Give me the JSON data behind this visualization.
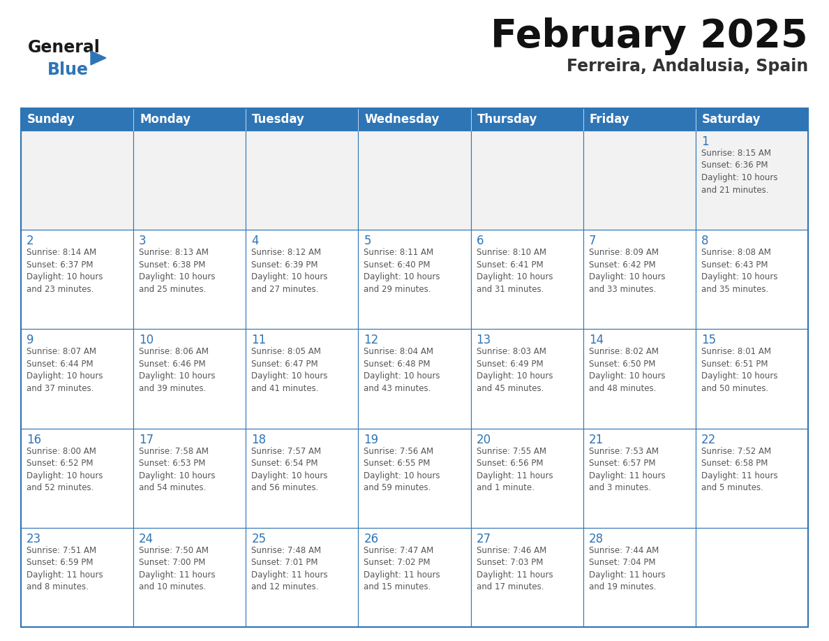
{
  "title": "February 2025",
  "subtitle": "Ferreira, Andalusia, Spain",
  "header_color": "#2E75B6",
  "header_text_color": "#FFFFFF",
  "cell_bg_color": "#FFFFFF",
  "cell_alt_bg_color": "#F2F2F2",
  "border_color": "#2E75B6",
  "day_number_color": "#2E75B6",
  "cell_text_color": "#555555",
  "title_color": "#111111",
  "subtitle_color": "#333333",
  "days_of_week": [
    "Sunday",
    "Monday",
    "Tuesday",
    "Wednesday",
    "Thursday",
    "Friday",
    "Saturday"
  ],
  "weeks": [
    [
      {
        "day": "",
        "info": ""
      },
      {
        "day": "",
        "info": ""
      },
      {
        "day": "",
        "info": ""
      },
      {
        "day": "",
        "info": ""
      },
      {
        "day": "",
        "info": ""
      },
      {
        "day": "",
        "info": ""
      },
      {
        "day": "1",
        "info": "Sunrise: 8:15 AM\nSunset: 6:36 PM\nDaylight: 10 hours\nand 21 minutes."
      }
    ],
    [
      {
        "day": "2",
        "info": "Sunrise: 8:14 AM\nSunset: 6:37 PM\nDaylight: 10 hours\nand 23 minutes."
      },
      {
        "day": "3",
        "info": "Sunrise: 8:13 AM\nSunset: 6:38 PM\nDaylight: 10 hours\nand 25 minutes."
      },
      {
        "day": "4",
        "info": "Sunrise: 8:12 AM\nSunset: 6:39 PM\nDaylight: 10 hours\nand 27 minutes."
      },
      {
        "day": "5",
        "info": "Sunrise: 8:11 AM\nSunset: 6:40 PM\nDaylight: 10 hours\nand 29 minutes."
      },
      {
        "day": "6",
        "info": "Sunrise: 8:10 AM\nSunset: 6:41 PM\nDaylight: 10 hours\nand 31 minutes."
      },
      {
        "day": "7",
        "info": "Sunrise: 8:09 AM\nSunset: 6:42 PM\nDaylight: 10 hours\nand 33 minutes."
      },
      {
        "day": "8",
        "info": "Sunrise: 8:08 AM\nSunset: 6:43 PM\nDaylight: 10 hours\nand 35 minutes."
      }
    ],
    [
      {
        "day": "9",
        "info": "Sunrise: 8:07 AM\nSunset: 6:44 PM\nDaylight: 10 hours\nand 37 minutes."
      },
      {
        "day": "10",
        "info": "Sunrise: 8:06 AM\nSunset: 6:46 PM\nDaylight: 10 hours\nand 39 minutes."
      },
      {
        "day": "11",
        "info": "Sunrise: 8:05 AM\nSunset: 6:47 PM\nDaylight: 10 hours\nand 41 minutes."
      },
      {
        "day": "12",
        "info": "Sunrise: 8:04 AM\nSunset: 6:48 PM\nDaylight: 10 hours\nand 43 minutes."
      },
      {
        "day": "13",
        "info": "Sunrise: 8:03 AM\nSunset: 6:49 PM\nDaylight: 10 hours\nand 45 minutes."
      },
      {
        "day": "14",
        "info": "Sunrise: 8:02 AM\nSunset: 6:50 PM\nDaylight: 10 hours\nand 48 minutes."
      },
      {
        "day": "15",
        "info": "Sunrise: 8:01 AM\nSunset: 6:51 PM\nDaylight: 10 hours\nand 50 minutes."
      }
    ],
    [
      {
        "day": "16",
        "info": "Sunrise: 8:00 AM\nSunset: 6:52 PM\nDaylight: 10 hours\nand 52 minutes."
      },
      {
        "day": "17",
        "info": "Sunrise: 7:58 AM\nSunset: 6:53 PM\nDaylight: 10 hours\nand 54 minutes."
      },
      {
        "day": "18",
        "info": "Sunrise: 7:57 AM\nSunset: 6:54 PM\nDaylight: 10 hours\nand 56 minutes."
      },
      {
        "day": "19",
        "info": "Sunrise: 7:56 AM\nSunset: 6:55 PM\nDaylight: 10 hours\nand 59 minutes."
      },
      {
        "day": "20",
        "info": "Sunrise: 7:55 AM\nSunset: 6:56 PM\nDaylight: 11 hours\nand 1 minute."
      },
      {
        "day": "21",
        "info": "Sunrise: 7:53 AM\nSunset: 6:57 PM\nDaylight: 11 hours\nand 3 minutes."
      },
      {
        "day": "22",
        "info": "Sunrise: 7:52 AM\nSunset: 6:58 PM\nDaylight: 11 hours\nand 5 minutes."
      }
    ],
    [
      {
        "day": "23",
        "info": "Sunrise: 7:51 AM\nSunset: 6:59 PM\nDaylight: 11 hours\nand 8 minutes."
      },
      {
        "day": "24",
        "info": "Sunrise: 7:50 AM\nSunset: 7:00 PM\nDaylight: 11 hours\nand 10 minutes."
      },
      {
        "day": "25",
        "info": "Sunrise: 7:48 AM\nSunset: 7:01 PM\nDaylight: 11 hours\nand 12 minutes."
      },
      {
        "day": "26",
        "info": "Sunrise: 7:47 AM\nSunset: 7:02 PM\nDaylight: 11 hours\nand 15 minutes."
      },
      {
        "day": "27",
        "info": "Sunrise: 7:46 AM\nSunset: 7:03 PM\nDaylight: 11 hours\nand 17 minutes."
      },
      {
        "day": "28",
        "info": "Sunrise: 7:44 AM\nSunset: 7:04 PM\nDaylight: 11 hours\nand 19 minutes."
      },
      {
        "day": "",
        "info": ""
      }
    ]
  ],
  "logo_text_general": "General",
  "logo_text_blue": "Blue",
  "logo_color_general": "#1a1a1a",
  "logo_color_blue": "#2E75B6",
  "logo_triangle_color": "#2E75B6",
  "title_fontsize": 40,
  "subtitle_fontsize": 17,
  "header_fontsize": 12,
  "day_num_fontsize": 12,
  "cell_text_fontsize": 8.5
}
